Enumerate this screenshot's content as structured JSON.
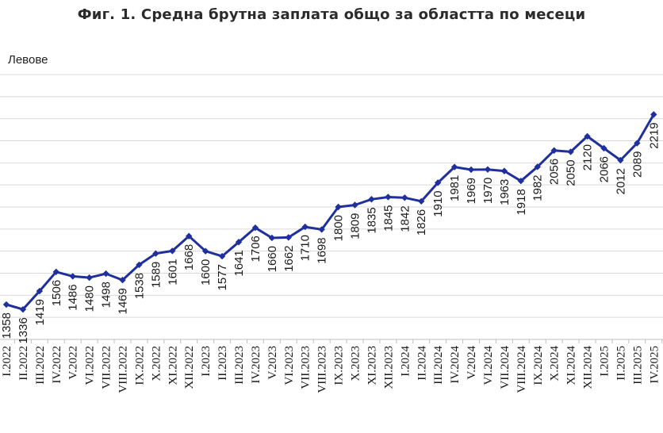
{
  "title": "Фиг. 1. Средна брутна заплата общо за областта по месеци",
  "chart_data": {
    "type": "line",
    "title": "Фиг. 1. Средна брутна заплата общо за областта по месеци",
    "ylabel": "Левове",
    "xlabel": "",
    "grid": true,
    "line_color": "#1f2f9e",
    "categories": [
      "I.2022",
      "II.2022",
      "III.2022",
      "IV.2022",
      "V.2022",
      "VI.2022",
      "VII.2022",
      "VIII.2022",
      "IX.2022",
      "X.2022",
      "XI.2022",
      "XII.2022",
      "I.2023",
      "II.2023",
      "III.2023",
      "IV.2023",
      "V.2023",
      "VI.2023",
      "VII.2023",
      "VIII.2023",
      "IX.2023",
      "X.2023",
      "XI.2023",
      "XII.2023",
      "I.2024",
      "II.2024",
      "III.2024",
      "IV.2024",
      "V.2024",
      "VI.2024",
      "VII.2024",
      "VIII.2024",
      "IX.2024",
      "X.2024",
      "XI.2024",
      "XII.2024",
      "I.2025",
      "II.2025",
      "III.2025",
      "IV.2025"
    ],
    "values": [
      1358,
      1336,
      1419,
      1506,
      1486,
      1480,
      1498,
      1469,
      1538,
      1589,
      1601,
      1668,
      1600,
      1577,
      1641,
      1706,
      1660,
      1662,
      1710,
      1698,
      1800,
      1809,
      1835,
      1845,
      1842,
      1826,
      1910,
      1981,
      1969,
      1970,
      1963,
      1918,
      1982,
      2056,
      2050,
      2120,
      2066,
      2012,
      2089,
      2219
    ],
    "data_labels": [
      "1358",
      "1336",
      "1419",
      "1506",
      "1486",
      "1480",
      "1498",
      "1469",
      "1538",
      "1589",
      "1601",
      "1668",
      "1600",
      "1577",
      "1641",
      "1706",
      "1660",
      "1662",
      "1710",
      "1698",
      "1800",
      "1809",
      "1835",
      "1845",
      "1842",
      "1826",
      "1910",
      "1981",
      "1969",
      "1970",
      "1963",
      "1918",
      "1982",
      "2056",
      "2050",
      "2120",
      "2066",
      "2012",
      "2089",
      "2219"
    ],
    "ylim": [
      1200,
      2400
    ]
  }
}
